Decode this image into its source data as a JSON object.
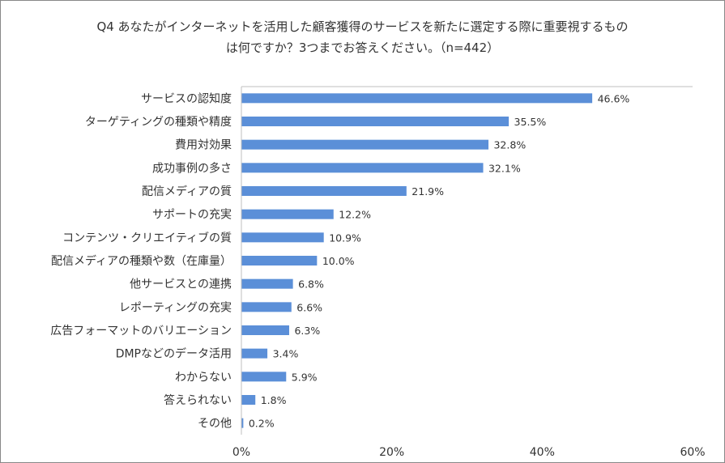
{
  "title": {
    "line1": "Q4 あなたがインターネットを活用した顧客獲得のサービスを新たに選定する際に重要視するもの",
    "line2": "は何ですか？3つまでお答えください。（n=442）"
  },
  "chart_data": {
    "type": "bar",
    "orientation": "horizontal",
    "categories": [
      "サービスの認知度",
      "ターゲティングの種類や精度",
      "費用対効果",
      "成功事例の多さ",
      "配信メディアの質",
      "サポートの充実",
      "コンテンツ・クリエイティブの質",
      "配信メディアの種類や数（在庫量）",
      "他サービスとの連携",
      "レポーティングの充実",
      "広告フォーマットのバリエーション",
      "DMPなどのデータ活用",
      "わからない",
      "答えられない",
      "その他"
    ],
    "values": [
      46.6,
      35.5,
      32.8,
      32.1,
      21.9,
      12.2,
      10.9,
      10.0,
      6.8,
      6.6,
      6.3,
      3.4,
      5.9,
      1.8,
      0.2
    ],
    "value_labels": [
      "46.6%",
      "35.5%",
      "32.8%",
      "32.1%",
      "21.9%",
      "12.2%",
      "10.9%",
      "10.0%",
      "6.8%",
      "6.6%",
      "6.3%",
      "3.4%",
      "5.9%",
      "1.8%",
      "0.2%"
    ],
    "xlim": [
      0,
      60
    ],
    "xticks": [
      0,
      20,
      40,
      60
    ],
    "xtick_labels": [
      "0%",
      "20%",
      "40%",
      "60%"
    ],
    "grid": false,
    "bar_color": "#5b8fd8"
  }
}
